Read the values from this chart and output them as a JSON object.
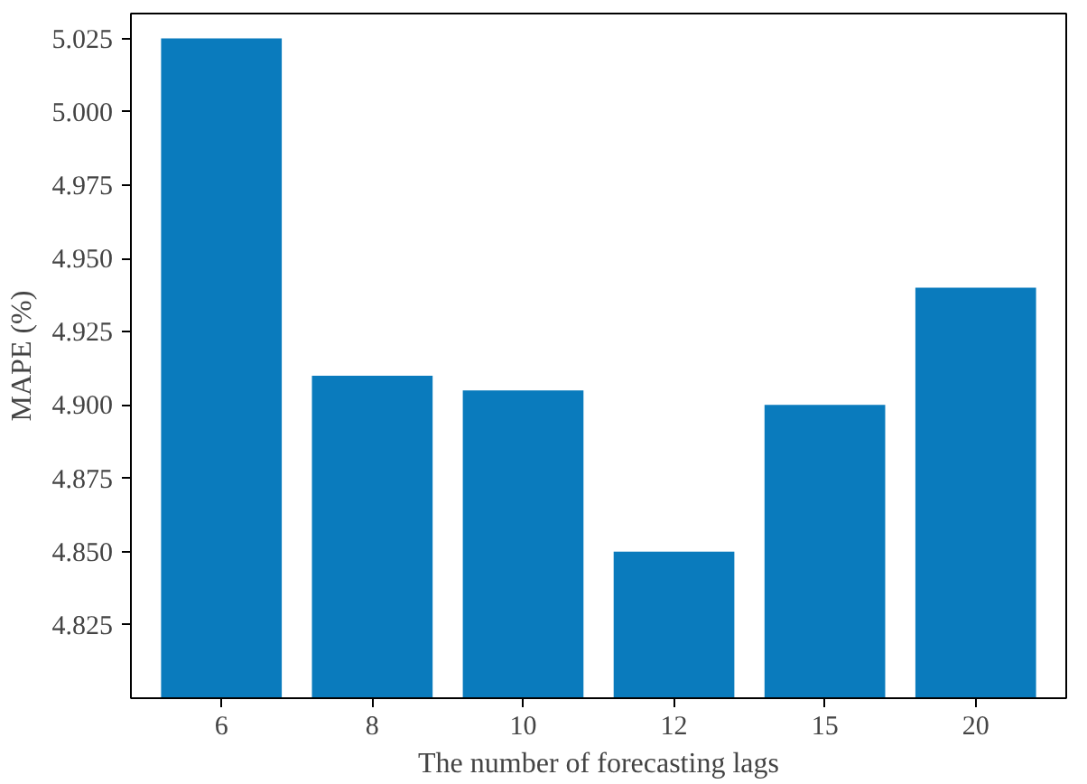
{
  "chart_data": {
    "type": "bar",
    "xlabel": "The number of forecasting lags",
    "ylabel": "MAPE (%)",
    "categories": [
      "6",
      "8",
      "10",
      "12",
      "15",
      "20"
    ],
    "values": [
      5.025,
      4.91,
      4.905,
      4.85,
      4.9,
      4.94
    ],
    "color": "#0a7bbd",
    "ylim": [
      4.8,
      5.0335
    ],
    "yticks": [
      {
        "value": 4.825,
        "label": "4.825"
      },
      {
        "value": 4.85,
        "label": "4.850"
      },
      {
        "value": 4.875,
        "label": "4.875"
      },
      {
        "value": 4.9,
        "label": "4.900"
      },
      {
        "value": 4.925,
        "label": "4.925"
      },
      {
        "value": 4.95,
        "label": "4.950"
      },
      {
        "value": 4.975,
        "label": "4.975"
      },
      {
        "value": 5.0,
        "label": "5.000"
      },
      {
        "value": 5.025,
        "label": "5.025"
      }
    ],
    "grid": false
  }
}
